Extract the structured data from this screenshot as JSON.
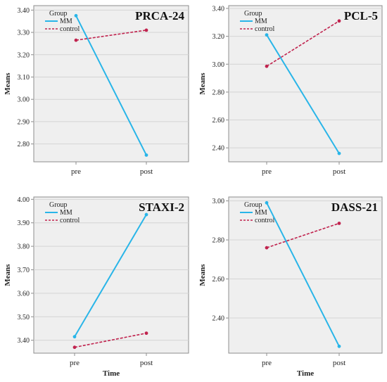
{
  "colors": {
    "mm": "#29B5E8",
    "control": "#C0234E",
    "plot_bg": "#EFEFEF",
    "grid": "#D4D4D4",
    "axis": "#8C8C8C"
  },
  "chart_data": [
    {
      "type": "line",
      "title": "PRCA-24",
      "xlabel": "",
      "ylabel": "Means",
      "categories": [
        "pre",
        "post"
      ],
      "yticks": [
        "2.80",
        "2.90",
        "3.00",
        "3.10",
        "3.20",
        "3.30",
        "3.40"
      ],
      "ylim": [
        2.72,
        3.42
      ],
      "grid": true,
      "legend_title": "Group",
      "legend_position": "top-left",
      "series": [
        {
          "name": "MM",
          "style": "solid",
          "values": [
            3.375,
            2.75
          ]
        },
        {
          "name": "control",
          "style": "dashed",
          "values": [
            3.265,
            3.31
          ]
        }
      ]
    },
    {
      "type": "line",
      "title": "PCL-5",
      "xlabel": "",
      "ylabel": "Means",
      "categories": [
        "pre",
        "post"
      ],
      "yticks": [
        "2.40",
        "2.60",
        "2.80",
        "3.00",
        "3.20",
        "3.40"
      ],
      "ylim": [
        2.3,
        3.42
      ],
      "grid": true,
      "legend_title": "Group",
      "legend_position": "top-left",
      "series": [
        {
          "name": "MM",
          "style": "solid",
          "values": [
            3.21,
            2.36
          ]
        },
        {
          "name": "control",
          "style": "dashed",
          "values": [
            2.985,
            3.31
          ]
        }
      ]
    },
    {
      "type": "line",
      "title": "STAXI-2",
      "xlabel": "Time",
      "ylabel": "Means",
      "categories": [
        "pre",
        "post"
      ],
      "yticks": [
        "3.40",
        "3.50",
        "3.60",
        "3.70",
        "3.80",
        "3.90",
        "4.00"
      ],
      "ylim": [
        3.345,
        4.01
      ],
      "grid": true,
      "legend_title": "Group",
      "legend_position": "top-left",
      "series": [
        {
          "name": "MM",
          "style": "solid",
          "values": [
            3.415,
            3.935
          ]
        },
        {
          "name": "control",
          "style": "dashed",
          "values": [
            3.37,
            3.43
          ]
        }
      ]
    },
    {
      "type": "line",
      "title": "DASS-21",
      "xlabel": "Time",
      "ylabel": "Means",
      "categories": [
        "pre",
        "post"
      ],
      "yticks": [
        "2.40",
        "2.60",
        "2.80",
        "3.00"
      ],
      "ylim": [
        2.22,
        3.02
      ],
      "grid": true,
      "legend_title": "Group",
      "legend_position": "top-left",
      "series": [
        {
          "name": "MM",
          "style": "solid",
          "values": [
            2.99,
            2.255
          ]
        },
        {
          "name": "control",
          "style": "dashed",
          "values": [
            2.76,
            2.885
          ]
        }
      ]
    }
  ]
}
